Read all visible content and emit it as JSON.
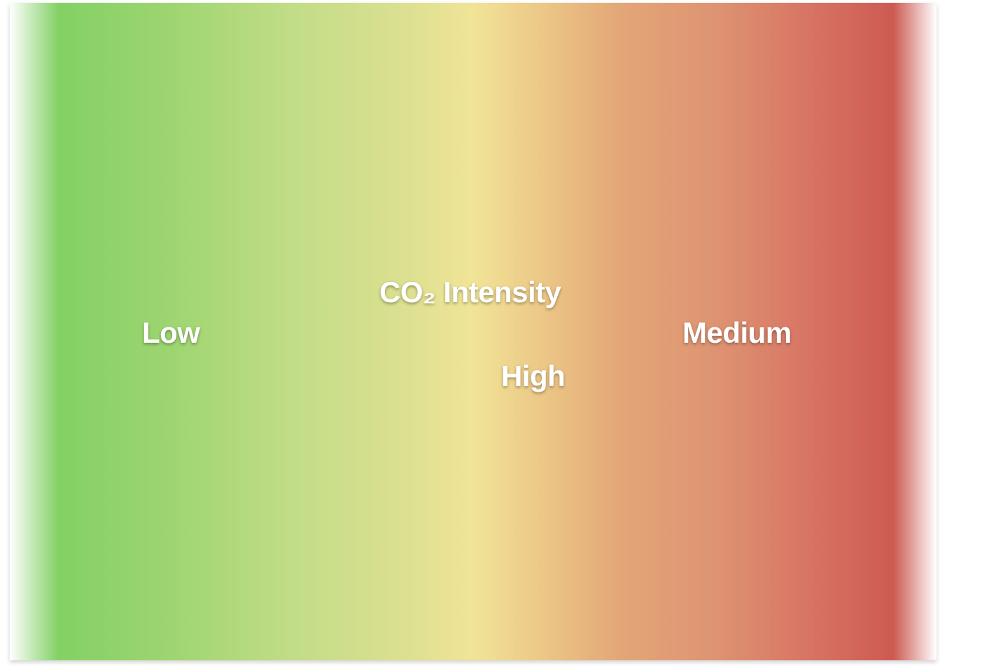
{
  "colors": {
    "low": "#7ed062",
    "mid": "#f1e497",
    "high": "#cd5851"
  },
  "labels": {
    "title": "CO₂ Intensity",
    "low": "Low",
    "high": "High",
    "medium": "Medium"
  }
}
